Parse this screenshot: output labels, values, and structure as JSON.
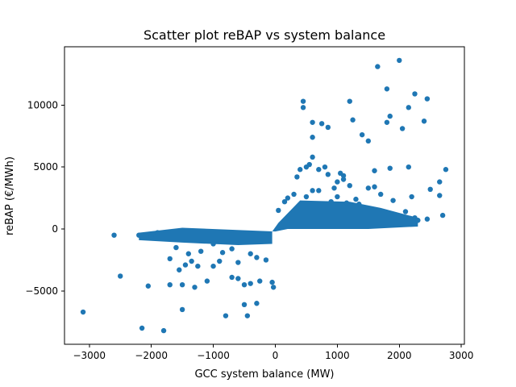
{
  "chart_data": {
    "type": "scatter",
    "title": "Scatter plot reBAP vs system balance",
    "xlabel": "GCC system balance (MW)",
    "ylabel": "reBAP (€/MWh)",
    "xlim": [
      -3400,
      3050
    ],
    "ylim": [
      -9300,
      14700
    ],
    "xticks": [
      {
        "value": -3000,
        "label": "−3000"
      },
      {
        "value": -2000,
        "label": "−2000"
      },
      {
        "value": -1000,
        "label": "−1000"
      },
      {
        "value": 0,
        "label": "0"
      },
      {
        "value": 1000,
        "label": "1000"
      },
      {
        "value": 2000,
        "label": "2000"
      },
      {
        "value": 3000,
        "label": "3000"
      }
    ],
    "yticks": [
      {
        "value": -5000,
        "label": "−5000"
      },
      {
        "value": 0,
        "label": "0"
      },
      {
        "value": 5000,
        "label": "5000"
      },
      {
        "value": 10000,
        "label": "10000"
      }
    ],
    "grid": false,
    "marker_color": "#1f77b4",
    "points": [
      {
        "x": -3100,
        "y": -6700
      },
      {
        "x": -2500,
        "y": -3800
      },
      {
        "x": -2150,
        "y": -8000
      },
      {
        "x": -2050,
        "y": -4600
      },
      {
        "x": -1800,
        "y": -8200
      },
      {
        "x": -1700,
        "y": -4500
      },
      {
        "x": -1500,
        "y": -4500
      },
      {
        "x": -1500,
        "y": -6500
      },
      {
        "x": -1300,
        "y": -4700
      },
      {
        "x": -1100,
        "y": -4200
      },
      {
        "x": -1450,
        "y": -2900
      },
      {
        "x": -1350,
        "y": -2600
      },
      {
        "x": -1550,
        "y": -3300
      },
      {
        "x": -1700,
        "y": -2400
      },
      {
        "x": -1250,
        "y": -3000
      },
      {
        "x": -1000,
        "y": -3000
      },
      {
        "x": -900,
        "y": -2600
      },
      {
        "x": -800,
        "y": -7000
      },
      {
        "x": -700,
        "y": -3900
      },
      {
        "x": -600,
        "y": -4000
      },
      {
        "x": -500,
        "y": -6100
      },
      {
        "x": -500,
        "y": -4500
      },
      {
        "x": -400,
        "y": -4400
      },
      {
        "x": -450,
        "y": -7000
      },
      {
        "x": -300,
        "y": -6000
      },
      {
        "x": -250,
        "y": -4200
      },
      {
        "x": -50,
        "y": -4300
      },
      {
        "x": -30,
        "y": -4700
      },
      {
        "x": -300,
        "y": -2300
      },
      {
        "x": -150,
        "y": -2500
      },
      {
        "x": -600,
        "y": -2700
      },
      {
        "x": -2600,
        "y": -500
      },
      {
        "x": -2200,
        "y": -500
      },
      {
        "x": -2000,
        "y": -600
      },
      {
        "x": -1900,
        "y": -300
      },
      {
        "x": -1600,
        "y": -1500
      },
      {
        "x": -1400,
        "y": -2000
      },
      {
        "x": -1200,
        "y": -1800
      },
      {
        "x": -1000,
        "y": -1200
      },
      {
        "x": -850,
        "y": -1900
      },
      {
        "x": -700,
        "y": -1600
      },
      {
        "x": -400,
        "y": -2000
      },
      {
        "x": 400,
        "y": 4800
      },
      {
        "x": 450,
        "y": 10300
      },
      {
        "x": 450,
        "y": 9800
      },
      {
        "x": 600,
        "y": 8600
      },
      {
        "x": 600,
        "y": 7400
      },
      {
        "x": 750,
        "y": 8500
      },
      {
        "x": 850,
        "y": 8200
      },
      {
        "x": 600,
        "y": 5800
      },
      {
        "x": 550,
        "y": 5200
      },
      {
        "x": 500,
        "y": 5000
      },
      {
        "x": 700,
        "y": 4800
      },
      {
        "x": 800,
        "y": 5000
      },
      {
        "x": 850,
        "y": 4400
      },
      {
        "x": 350,
        "y": 4200
      },
      {
        "x": 1050,
        "y": 4500
      },
      {
        "x": 1100,
        "y": 4000
      },
      {
        "x": 1100,
        "y": 4300
      },
      {
        "x": 1200,
        "y": 10300
      },
      {
        "x": 1250,
        "y": 8800
      },
      {
        "x": 1400,
        "y": 7600
      },
      {
        "x": 1500,
        "y": 7100
      },
      {
        "x": 1650,
        "y": 13100
      },
      {
        "x": 1800,
        "y": 11300
      },
      {
        "x": 2000,
        "y": 13600
      },
      {
        "x": 1850,
        "y": 9100
      },
      {
        "x": 1800,
        "y": 8600
      },
      {
        "x": 2050,
        "y": 8100
      },
      {
        "x": 2150,
        "y": 9800
      },
      {
        "x": 2250,
        "y": 10900
      },
      {
        "x": 2450,
        "y": 10500
      },
      {
        "x": 2400,
        "y": 8700
      },
      {
        "x": 1600,
        "y": 4700
      },
      {
        "x": 1850,
        "y": 4900
      },
      {
        "x": 2150,
        "y": 5000
      },
      {
        "x": 1500,
        "y": 3300
      },
      {
        "x": 1600,
        "y": 3400
      },
      {
        "x": 1900,
        "y": 2300
      },
      {
        "x": 2200,
        "y": 2600
      },
      {
        "x": 2500,
        "y": 3200
      },
      {
        "x": 2650,
        "y": 3800
      },
      {
        "x": 2750,
        "y": 4800
      },
      {
        "x": 2650,
        "y": 2700
      },
      {
        "x": 2700,
        "y": 1100
      },
      {
        "x": 2450,
        "y": 800
      },
      {
        "x": 2250,
        "y": 900
      },
      {
        "x": 1300,
        "y": 2400
      },
      {
        "x": 1350,
        "y": 2000
      },
      {
        "x": 1150,
        "y": 2100
      },
      {
        "x": 1000,
        "y": 2600
      },
      {
        "x": 900,
        "y": 2200
      },
      {
        "x": 700,
        "y": 3100
      },
      {
        "x": 600,
        "y": 3100
      },
      {
        "x": 500,
        "y": 2600
      },
      {
        "x": 300,
        "y": 2800
      },
      {
        "x": 200,
        "y": 2500
      },
      {
        "x": 150,
        "y": 2200
      },
      {
        "x": 50,
        "y": 1500
      },
      {
        "x": 950,
        "y": 3300
      },
      {
        "x": 1000,
        "y": 3800
      },
      {
        "x": 1200,
        "y": 3500
      },
      {
        "x": 1700,
        "y": 2800
      },
      {
        "x": 2100,
        "y": 1400
      },
      {
        "x": 2300,
        "y": 700
      }
    ]
  }
}
